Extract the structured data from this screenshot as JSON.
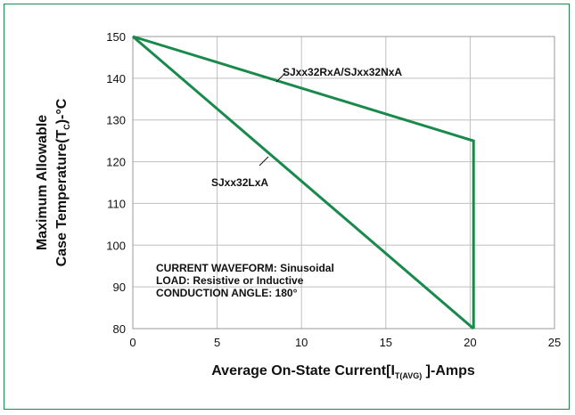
{
  "chart_data": {
    "type": "line",
    "title": "",
    "xlabel": {
      "main": "Average On-State Current[I",
      "sub": "T(AVG)",
      "tail": " ]-Amps"
    },
    "ylabel": {
      "line1": "Maximum Allowable",
      "line2_main": "Case Temperature(T",
      "line2_sub": "C",
      "line2_tail": ")-°C"
    },
    "xlim": [
      0,
      25
    ],
    "ylim": [
      80,
      150
    ],
    "xticks": [
      0,
      5,
      10,
      15,
      20,
      25
    ],
    "yticks": [
      80,
      90,
      100,
      110,
      120,
      130,
      140,
      150
    ],
    "grid": true,
    "series": [
      {
        "name": "SJxx32RxA/SJxx32NxA",
        "x": [
          0,
          20.2,
          20.2
        ],
        "y": [
          150,
          125,
          80
        ]
      },
      {
        "name": "SJxx32LxA",
        "x": [
          0,
          20.2
        ],
        "y": [
          150,
          80
        ]
      }
    ],
    "annotations": [
      "CURRENT WAVEFORM: Sinusoidal",
      "LOAD: Resistive or Inductive",
      "CONDUCTION ANGLE: 180°"
    ],
    "colors": {
      "line": "#1a8a4c",
      "grid": "#c0c0c0",
      "frame": "#1a8a4c"
    }
  }
}
